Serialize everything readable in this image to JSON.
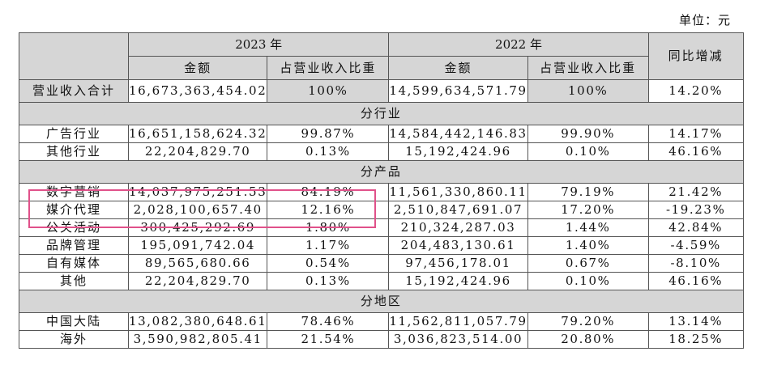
{
  "unit_label": "单位：元",
  "header": {
    "year_2023": "2023 年",
    "year_2022": "2022 年",
    "yoy": "同比增减",
    "amount": "金额",
    "ratio": "占营业收入比重"
  },
  "total": {
    "label": "营业收入合计",
    "amt_2023": "16,673,363,454.02",
    "pct_2023": "100%",
    "amt_2022": "14,599,634,571.79",
    "pct_2022": "100%",
    "yoy": "14.20%"
  },
  "sections": [
    {
      "title": "分行业",
      "rows": [
        {
          "label": "广告行业",
          "amt_2023": "16,651,158,624.32",
          "pct_2023": "99.87%",
          "amt_2022": "14,584,442,146.83",
          "pct_2022": "99.90%",
          "yoy": "14.17%"
        },
        {
          "label": "其他行业",
          "amt_2023": "22,204,829.70",
          "pct_2023": "0.13%",
          "amt_2022": "15,192,424.96",
          "pct_2022": "0.10%",
          "yoy": "46.16%"
        }
      ]
    },
    {
      "title": "分产品",
      "rows": [
        {
          "label": "数字营销",
          "amt_2023": "14,037,975,251.53",
          "pct_2023": "84.19%",
          "amt_2022": "11,561,330,860.11",
          "pct_2022": "79.19%",
          "yoy": "21.42%"
        },
        {
          "label": "媒介代理",
          "amt_2023": "2,028,100,657.40",
          "pct_2023": "12.16%",
          "amt_2022": "2,510,847,691.07",
          "pct_2022": "17.20%",
          "yoy": "-19.23%"
        },
        {
          "label": "公关活动",
          "amt_2023": "300,425,292.69",
          "pct_2023": "1.80%",
          "amt_2022": "210,324,287.03",
          "pct_2022": "1.44%",
          "yoy": "42.84%"
        },
        {
          "label": "品牌管理",
          "amt_2023": "195,091,742.04",
          "pct_2023": "1.17%",
          "amt_2022": "204,483,130.61",
          "pct_2022": "1.40%",
          "yoy": "-4.59%"
        },
        {
          "label": "自有媒体",
          "amt_2023": "89,565,680.66",
          "pct_2023": "0.54%",
          "amt_2022": "97,456,178.01",
          "pct_2022": "0.67%",
          "yoy": "-8.10%"
        },
        {
          "label": "其他",
          "amt_2023": "22,204,829.70",
          "pct_2023": "0.13%",
          "amt_2022": "15,192,424.96",
          "pct_2022": "0.10%",
          "yoy": "46.16%"
        }
      ]
    },
    {
      "title": "分地区",
      "rows": [
        {
          "label": "中国大陆",
          "amt_2023": "13,082,380,648.61",
          "pct_2023": "78.46%",
          "amt_2022": "11,562,811,057.79",
          "pct_2022": "79.20%",
          "yoy": "13.14%"
        },
        {
          "label": "海外",
          "amt_2023": "3,590,982,805.41",
          "pct_2023": "21.54%",
          "amt_2022": "3,036,823,514.00",
          "pct_2022": "20.80%",
          "yoy": "18.25%"
        }
      ]
    }
  ],
  "colors": {
    "header_fill": "#d6d6d6",
    "highlight_border": "#e0518a"
  }
}
